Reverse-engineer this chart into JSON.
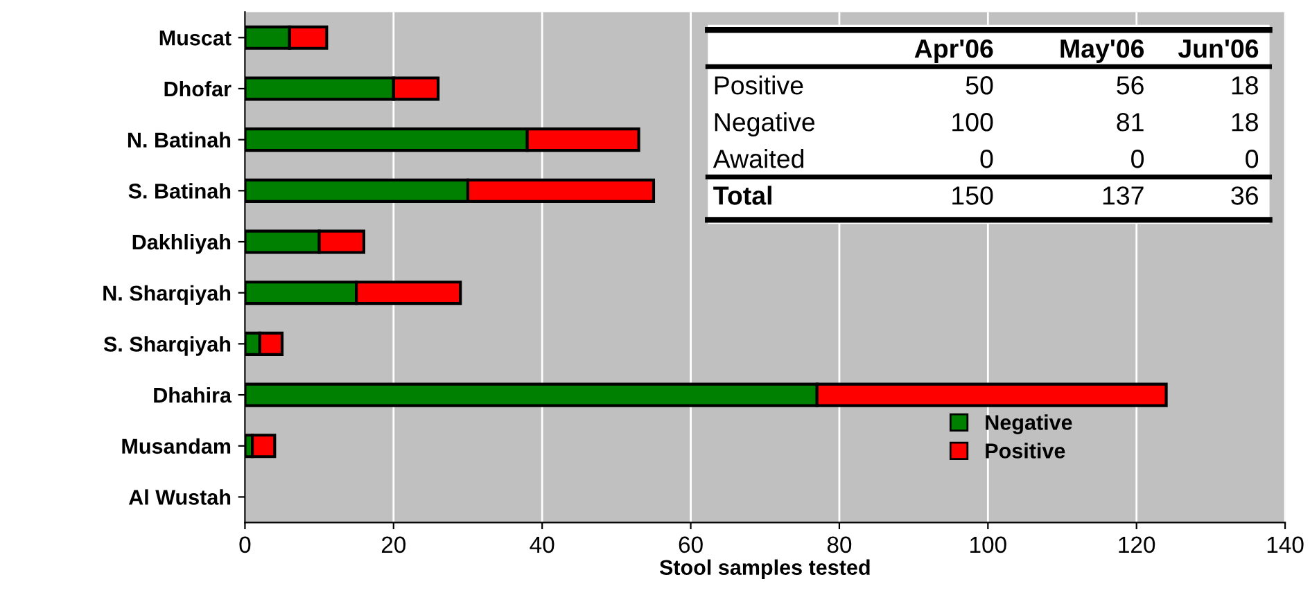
{
  "chart_data": {
    "type": "bar",
    "orientation": "horizontal",
    "stacked": true,
    "categories": [
      "Muscat",
      "Dhofar",
      "N. Batinah",
      "S. Batinah",
      "Dakhliyah",
      "N. Sharqiyah",
      "S. Sharqiyah",
      "Dhahira",
      "Musandam",
      "Al Wustah"
    ],
    "series": [
      {
        "name": "Negative",
        "color": "#008000",
        "values": [
          6,
          20,
          38,
          30,
          10,
          15,
          2,
          77,
          1,
          0
        ]
      },
      {
        "name": "Positive",
        "color": "#ff0000",
        "values": [
          5,
          6,
          15,
          25,
          6,
          14,
          3,
          47,
          3,
          0
        ]
      }
    ],
    "xlabel": "Stool samples tested",
    "xlim": [
      0,
      140
    ],
    "xticks": [
      0,
      20,
      40,
      60,
      80,
      100,
      120,
      140
    ],
    "grid": "x",
    "legend": "bottom right",
    "annotations": [
      "\tApr'06\tMay'06\tJun'06",
      "Positive\t50\t56\t18",
      "Negative\t100\t81\t18",
      "Awaited\t0\t0\t0",
      "Total\t150\t137\t36"
    ]
  }
}
